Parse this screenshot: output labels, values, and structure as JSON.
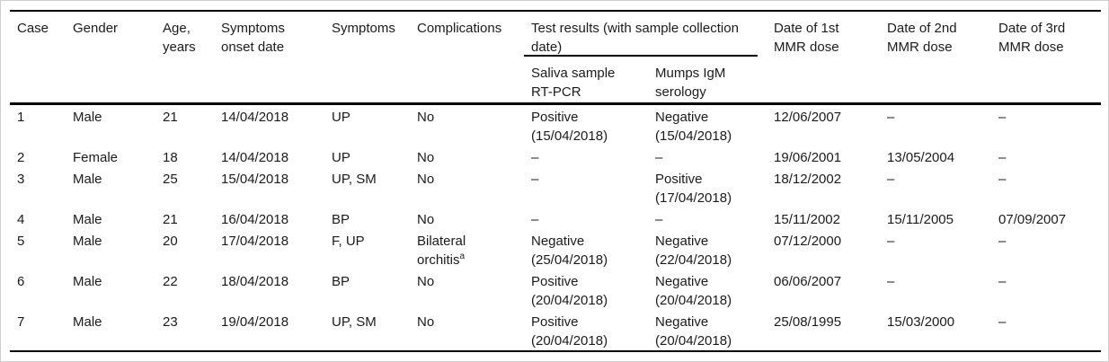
{
  "colors": {
    "text": "#1b1b1b",
    "rules": "#000000",
    "background": "#ffffff",
    "frame_border": "#cfcfcf"
  },
  "table": {
    "header": {
      "cols": [
        {
          "key": "case",
          "lines": [
            "Case"
          ]
        },
        {
          "key": "gender",
          "lines": [
            "Gender"
          ]
        },
        {
          "key": "age",
          "lines": [
            "Age,",
            "years"
          ]
        },
        {
          "key": "onset-date",
          "lines": [
            "Symptoms",
            "onset date"
          ]
        },
        {
          "key": "symptoms",
          "lines": [
            "Symptoms"
          ]
        },
        {
          "key": "complications",
          "lines": [
            "Complications"
          ]
        }
      ],
      "group": {
        "key": "test-results",
        "lines": [
          "Test results (with sample collection",
          "date)"
        ]
      },
      "sub_cols": [
        {
          "key": "saliva-rt-pcr",
          "lines": [
            "Saliva sample",
            "RT-PCR"
          ]
        },
        {
          "key": "mumps-igm",
          "lines": [
            "Mumps IgM",
            "serology"
          ]
        }
      ],
      "dose_cols": [
        {
          "key": "mmr-dose-1",
          "lines": [
            "Date of 1st",
            "MMR dose"
          ]
        },
        {
          "key": "mmr-dose-2",
          "lines": [
            "Date of 2nd",
            "MMR dose"
          ]
        },
        {
          "key": "mmr-dose-3",
          "lines": [
            "Date of 3rd",
            "MMR dose"
          ]
        }
      ]
    },
    "cell_keys": [
      "case",
      "gender",
      "age",
      "onset-date",
      "symptoms",
      "complications",
      "saliva-rt-pcr",
      "mumps-igm",
      "mmr-dose-1",
      "mmr-dose-2",
      "mmr-dose-3"
    ],
    "rows": [
      [
        [
          "1"
        ],
        [
          "Male"
        ],
        [
          "21"
        ],
        [
          "14/04/2018"
        ],
        [
          "UP"
        ],
        [
          "No"
        ],
        [
          "Positive",
          "(15/04/2018)"
        ],
        [
          "Negative",
          "(15/04/2018)"
        ],
        [
          "12/06/2007"
        ],
        [
          "–"
        ],
        [
          "–"
        ]
      ],
      [
        [
          "2"
        ],
        [
          "Female"
        ],
        [
          "18"
        ],
        [
          "14/04/2018"
        ],
        [
          "UP"
        ],
        [
          "No"
        ],
        [
          "–"
        ],
        [
          "–"
        ],
        [
          "19/06/2001"
        ],
        [
          "13/05/2004"
        ],
        [
          "–"
        ]
      ],
      [
        [
          "3"
        ],
        [
          "Male"
        ],
        [
          "25"
        ],
        [
          "15/04/2018"
        ],
        [
          "UP, SM"
        ],
        [
          "No"
        ],
        [
          "–"
        ],
        [
          "Positive",
          "(17/04/2018)"
        ],
        [
          "18/12/2002"
        ],
        [
          "–"
        ],
        [
          "–"
        ]
      ],
      [
        [
          "4"
        ],
        [
          "Male"
        ],
        [
          "21"
        ],
        [
          "16/04/2018"
        ],
        [
          "BP"
        ],
        [
          "No"
        ],
        [
          "–"
        ],
        [
          "–"
        ],
        [
          "15/11/2002"
        ],
        [
          "15/11/2005"
        ],
        [
          "07/09/2007"
        ]
      ],
      [
        [
          "5"
        ],
        [
          "Male"
        ],
        [
          "20"
        ],
        [
          "17/04/2018"
        ],
        [
          "F, UP"
        ],
        [
          "Bilateral",
          "orchitis{^a}"
        ],
        [
          "Negative",
          "(25/04/2018)"
        ],
        [
          "Negative",
          "(22/04/2018)"
        ],
        [
          "07/12/2000"
        ],
        [
          "–"
        ],
        [
          "–"
        ]
      ],
      [
        [
          "6"
        ],
        [
          "Male"
        ],
        [
          "22"
        ],
        [
          "18/04/2018"
        ],
        [
          "BP"
        ],
        [
          "No"
        ],
        [
          "Positive",
          "(20/04/2018)"
        ],
        [
          "Negative",
          "(20/04/2018)"
        ],
        [
          "06/06/2007"
        ],
        [
          "–"
        ],
        [
          "–"
        ]
      ],
      [
        [
          "7"
        ],
        [
          "Male"
        ],
        [
          "23"
        ],
        [
          "19/04/2018"
        ],
        [
          "UP, SM"
        ],
        [
          "No"
        ],
        [
          "Positive",
          "(20/04/2018)"
        ],
        [
          "Negative",
          "(20/04/2018)"
        ],
        [
          "25/08/1995"
        ],
        [
          "15/03/2000"
        ],
        [
          "–"
        ]
      ]
    ]
  }
}
